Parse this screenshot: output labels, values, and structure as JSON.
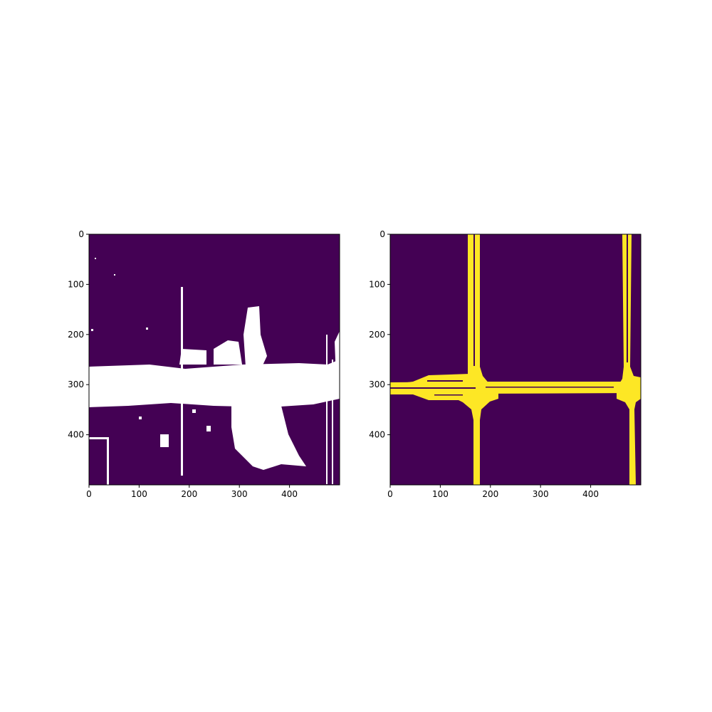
{
  "figure": {
    "background": "#ffffff"
  },
  "colormap": {
    "low": "#440154",
    "high": "#fde725",
    "overlay": "#ffffff"
  },
  "chart_data": [
    {
      "type": "heatmap",
      "title": "",
      "xlabel": "",
      "ylabel": "",
      "xlim": [
        0,
        500
      ],
      "ylim": [
        500,
        0
      ],
      "xticks": [
        0,
        100,
        200,
        300,
        400
      ],
      "yticks": [
        0,
        100,
        200,
        300,
        400
      ],
      "y_axis_inverted": true,
      "background_value": "#440154",
      "mask_color": "#ffffff",
      "features": [
        {
          "kind": "band",
          "x": [
            0,
            500
          ],
          "y": [
            262,
            345
          ]
        },
        {
          "kind": "band",
          "x": [
            150,
            330
          ],
          "y": [
            290,
            330
          ]
        },
        {
          "kind": "region",
          "x": [
            280,
            420
          ],
          "y": [
            255,
            460
          ]
        },
        {
          "kind": "region",
          "x": [
            315,
            345
          ],
          "y": [
            145,
            255
          ]
        },
        {
          "kind": "line",
          "x": [
            185,
            190
          ],
          "y": [
            105,
            500
          ]
        },
        {
          "kind": "line",
          "x": [
            455,
            480
          ],
          "y": [
            195,
            500
          ]
        },
        {
          "kind": "line",
          "x": [
            0,
            40
          ],
          "y": [
            405,
            500
          ]
        }
      ]
    },
    {
      "type": "heatmap",
      "title": "",
      "xlabel": "",
      "ylabel": "",
      "xlim": [
        0,
        500
      ],
      "ylim": [
        500,
        0
      ],
      "xticks": [
        0,
        100,
        200,
        300,
        400
      ],
      "yticks": [
        0,
        100,
        200,
        300,
        400
      ],
      "y_axis_inverted": true,
      "background_value": "#440154",
      "mask_color": "#fde725",
      "roads": [
        {
          "orientation": "vertical",
          "x": [
            155,
            178
          ],
          "y": [
            0,
            500
          ]
        },
        {
          "orientation": "vertical",
          "x": [
            465,
            492
          ],
          "y": [
            0,
            500
          ]
        },
        {
          "orientation": "horizontal",
          "x": [
            0,
            500
          ],
          "y": [
            292,
            315
          ]
        },
        {
          "orientation": "horizontal",
          "x": [
            0,
            150
          ],
          "y": [
            282,
            325
          ]
        }
      ]
    }
  ]
}
